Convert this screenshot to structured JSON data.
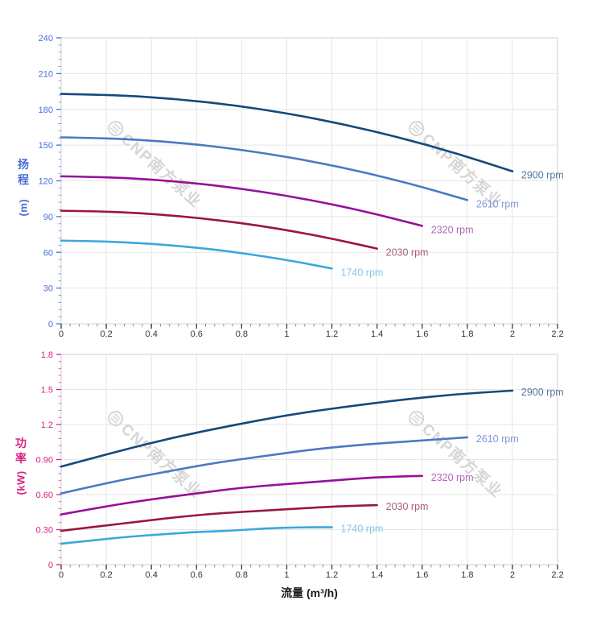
{
  "page": {
    "background": "#ffffff"
  },
  "watermark": {
    "text": "CNP南方泵业",
    "logo": "cnp-circle-logo",
    "color": "#d6d6d6"
  },
  "styles": {
    "grid_color": "#e6e6e6",
    "border_color": "#d9d9d9",
    "x_tick_color": "#3a3a3a",
    "x_minor_tick_color": "#8f8f8f",
    "x_tick_label_color": "#333333"
  },
  "chart_data": [
    {
      "type": "line",
      "name": "head-vs-flow",
      "title": "",
      "xlabel": "",
      "ylabel_text": "扬程",
      "ylabel_unit": "(m)",
      "axis_color": "#4a6edb",
      "xlim": [
        0,
        2.2
      ],
      "ylim": [
        0,
        240
      ],
      "grid": true,
      "legend_position": "end-of-line",
      "x_major_step": 0.2,
      "x_minor_step": 0.04,
      "y_minor_step": 6,
      "x_tick_labels": [
        "0",
        "0.2",
        "0.4",
        "0.6",
        "0.8",
        "1",
        "1.2",
        "1.4",
        "1.6",
        "1.8",
        "2",
        "2.2"
      ],
      "y_ticks": [
        {
          "v": 0,
          "label": "0"
        },
        {
          "v": 30,
          "label": "30"
        },
        {
          "v": 60,
          "label": "60"
        },
        {
          "v": 90,
          "label": "90"
        },
        {
          "v": 120,
          "label": "120"
        },
        {
          "v": 150,
          "label": "150"
        },
        {
          "v": 180,
          "label": "180"
        },
        {
          "v": 210,
          "label": "210"
        },
        {
          "v": 240,
          "label": "240"
        }
      ],
      "series": [
        {
          "name": "2900 rpm",
          "color": "#15497d",
          "label_color": "#54779f",
          "x": [
            0,
            0.25,
            0.5,
            0.75,
            1.0,
            1.25,
            1.5,
            1.75,
            2.0
          ],
          "y": [
            193,
            192,
            188.9,
            183.9,
            176.8,
            167.6,
            156.4,
            143.2,
            128
          ]
        },
        {
          "name": "2610 rpm",
          "color": "#4a79c4",
          "label_color": "#7d99d9",
          "x": [
            0,
            0.225,
            0.45,
            0.675,
            0.9,
            1.125,
            1.35,
            1.575,
            1.8
          ],
          "y": [
            156.5,
            155.7,
            153.2,
            149.1,
            143.3,
            135.9,
            126.9,
            116.2,
            103.9
          ]
        },
        {
          "name": "2320 rpm",
          "color": "#960f9b",
          "label_color": "#b168b7",
          "x": [
            0,
            0.2,
            0.4,
            0.6,
            0.8,
            1.0,
            1.2,
            1.4,
            1.6
          ],
          "y": [
            123.8,
            123.1,
            121.2,
            117.9,
            113.4,
            107.5,
            100.4,
            91.9,
            82.2
          ]
        },
        {
          "name": "2030 rpm",
          "color": "#9c1638",
          "label_color": "#a86076",
          "x": [
            0,
            0.175,
            0.35,
            0.525,
            0.7,
            0.875,
            1.05,
            1.225,
            1.4
          ],
          "y": [
            94.9,
            94.4,
            92.9,
            90.4,
            86.9,
            82.5,
            77.0,
            70.5,
            63.1
          ]
        },
        {
          "name": "1740 rpm",
          "color": "#3ba7de",
          "label_color": "#86c5ea",
          "x": [
            0,
            0.15,
            0.3,
            0.45,
            0.6,
            0.75,
            0.9,
            1.05,
            1.2
          ],
          "y": [
            69.8,
            69.4,
            68.3,
            66.5,
            63.9,
            60.7,
            56.6,
            51.9,
            46.4
          ]
        }
      ]
    },
    {
      "type": "line",
      "name": "power-vs-flow",
      "title": "",
      "xlabel": "流量 (m³/h)",
      "ylabel_text": "功率",
      "ylabel_unit": "(kW)",
      "axis_color": "#d9237f",
      "xlim": [
        0,
        2.2
      ],
      "ylim": [
        0,
        1.8
      ],
      "grid": true,
      "legend_position": "end-of-line",
      "x_major_step": 0.2,
      "x_minor_step": 0.04,
      "y_minor_step": 0.06,
      "x_tick_labels": [
        "0",
        "0.2",
        "0.4",
        "0.6",
        "0.8",
        "1",
        "1.2",
        "1.4",
        "1.6",
        "1.8",
        "2",
        "2.2"
      ],
      "y_ticks": [
        {
          "v": 0,
          "label": "0"
        },
        {
          "v": 0.3,
          "label": "0.30"
        },
        {
          "v": 0.6,
          "label": "0.60"
        },
        {
          "v": 0.9,
          "label": "0.90"
        },
        {
          "v": 1.2,
          "label": "1.2"
        },
        {
          "v": 1.5,
          "label": "1.5"
        },
        {
          "v": 1.8,
          "label": "1.8"
        }
      ],
      "series": [
        {
          "name": "2900 rpm",
          "color": "#15497d",
          "label_color": "#54779f",
          "x": [
            0,
            0.25,
            0.5,
            0.75,
            1.0,
            1.25,
            1.5,
            1.75,
            2.0
          ],
          "y": [
            0.84,
            0.97,
            1.09,
            1.19,
            1.28,
            1.35,
            1.41,
            1.46,
            1.49
          ]
        },
        {
          "name": "2610 rpm",
          "color": "#4a79c4",
          "label_color": "#7d99d9",
          "x": [
            0,
            0.225,
            0.45,
            0.675,
            0.9,
            1.125,
            1.35,
            1.575,
            1.8
          ],
          "y": [
            0.61,
            0.71,
            0.79,
            0.87,
            0.93,
            0.99,
            1.03,
            1.06,
            1.09
          ]
        },
        {
          "name": "2320 rpm",
          "color": "#960f9b",
          "label_color": "#b168b7",
          "x": [
            0,
            0.2,
            0.4,
            0.6,
            0.8,
            1.0,
            1.2,
            1.4,
            1.6
          ],
          "y": [
            0.43,
            0.5,
            0.56,
            0.61,
            0.66,
            0.69,
            0.72,
            0.75,
            0.76
          ]
        },
        {
          "name": "2030 rpm",
          "color": "#9c1638",
          "label_color": "#a86076",
          "x": [
            0,
            0.175,
            0.35,
            0.525,
            0.7,
            0.875,
            1.05,
            1.225,
            1.4
          ],
          "y": [
            0.29,
            0.33,
            0.37,
            0.41,
            0.44,
            0.46,
            0.48,
            0.5,
            0.51
          ]
        },
        {
          "name": "1740 rpm",
          "color": "#3ba7de",
          "label_color": "#86c5ea",
          "x": [
            0,
            0.15,
            0.3,
            0.45,
            0.6,
            0.75,
            0.9,
            1.05,
            1.2
          ],
          "y": [
            0.18,
            0.21,
            0.24,
            0.26,
            0.28,
            0.29,
            0.31,
            0.32,
            0.32
          ]
        }
      ]
    }
  ]
}
